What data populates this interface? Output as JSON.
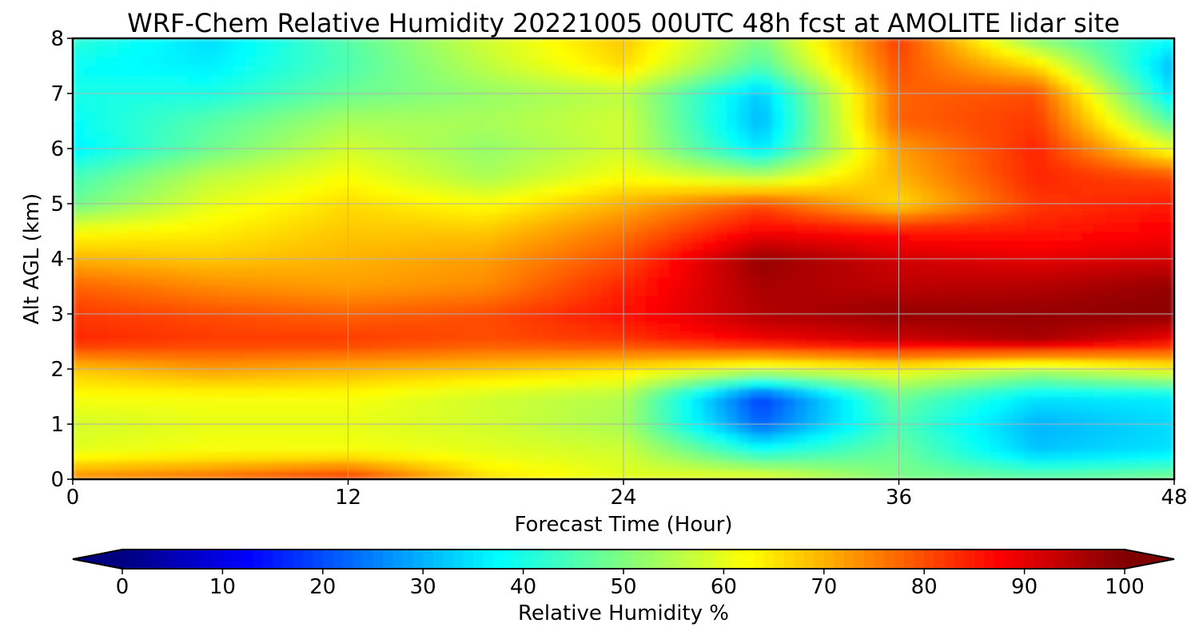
{
  "chart_data": {
    "type": "heatmap",
    "title": "WRF-Chem Relative Humidity 20221005 00UTC 48h fcst at AMOLITE lidar site",
    "xlabel": "Forecast Time (Hour)",
    "ylabel": "Alt AGL (km)",
    "xlim": [
      0,
      48
    ],
    "ylim": [
      0,
      8
    ],
    "xticks": [
      0,
      12,
      24,
      36,
      48
    ],
    "yticks": [
      0,
      1,
      2,
      3,
      4,
      5,
      6,
      7,
      8
    ],
    "grid": true,
    "colorbar": {
      "label": "Relative Humidity %",
      "colormap": "jet",
      "vmin": 0,
      "vmax": 100,
      "ticks": [
        0,
        10,
        20,
        30,
        40,
        50,
        60,
        70,
        80,
        90,
        100
      ],
      "extend": "both",
      "orientation": "horizontal",
      "placement": "bottom"
    },
    "x": [
      0,
      6,
      12,
      18,
      24,
      30,
      36,
      42,
      48
    ],
    "y": [
      0,
      0.5,
      1,
      1.5,
      2,
      2.5,
      3,
      3.5,
      4,
      4.5,
      5,
      5.5,
      6,
      6.5,
      7,
      7.5,
      8
    ],
    "z": [
      [
        75,
        78,
        84,
        66,
        60,
        62,
        50,
        48,
        50
      ],
      [
        60,
        62,
        62,
        60,
        58,
        40,
        48,
        32,
        35
      ],
      [
        58,
        60,
        60,
        58,
        54,
        22,
        45,
        30,
        34
      ],
      [
        62,
        62,
        62,
        58,
        55,
        18,
        48,
        35,
        36
      ],
      [
        68,
        72,
        70,
        68,
        65,
        58,
        62,
        55,
        62
      ],
      [
        84,
        82,
        82,
        80,
        82,
        88,
        92,
        96,
        88
      ],
      [
        82,
        80,
        78,
        80,
        86,
        95,
        98,
        98,
        99
      ],
      [
        78,
        74,
        72,
        74,
        84,
        96,
        94,
        95,
        98
      ],
      [
        70,
        68,
        70,
        72,
        80,
        98,
        92,
        90,
        92
      ],
      [
        62,
        64,
        68,
        68,
        76,
        88,
        86,
        85,
        88
      ],
      [
        48,
        60,
        66,
        62,
        70,
        80,
        66,
        82,
        85
      ],
      [
        44,
        56,
        62,
        54,
        62,
        55,
        70,
        84,
        80
      ],
      [
        36,
        48,
        58,
        52,
        58,
        35,
        72,
        84,
        60
      ],
      [
        38,
        46,
        54,
        54,
        58,
        30,
        78,
        82,
        45
      ],
      [
        40,
        40,
        48,
        52,
        56,
        32,
        78,
        80,
        34
      ],
      [
        38,
        36,
        45,
        56,
        66,
        45,
        80,
        66,
        30
      ],
      [
        42,
        34,
        46,
        58,
        68,
        50,
        82,
        50,
        38
      ]
    ]
  }
}
